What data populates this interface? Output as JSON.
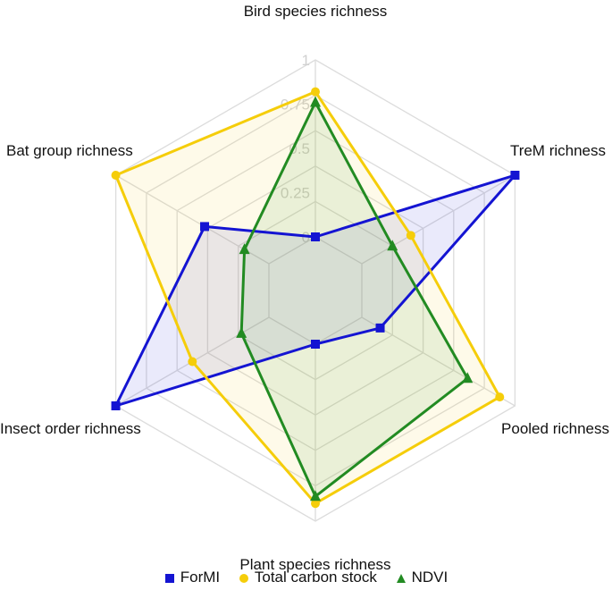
{
  "chart_data": {
    "type": "radar",
    "axes": [
      "Bird species richness",
      "TreM richness",
      "Pooled richness",
      "Plant species richness",
      "Insect order richness",
      "Bat group richness"
    ],
    "ticks": [
      "0",
      "0.25",
      "0.5",
      "0.75",
      "1"
    ],
    "range": [
      0,
      1
    ],
    "rings": 6,
    "legend_position": "bottom",
    "series": [
      {
        "name": "ForMI",
        "color": "#1414d2",
        "marker": "square",
        "values": [
          0.0,
          1.0,
          0.12,
          0.0,
          1.0,
          0.42
        ]
      },
      {
        "name": "Total carbon stock",
        "color": "#f5cd0a",
        "marker": "circle",
        "values": [
          0.82,
          0.32,
          0.9,
          0.9,
          0.5,
          1.0
        ]
      },
      {
        "name": "NDVI",
        "color": "#228b22",
        "marker": "triangle",
        "values": [
          0.76,
          0.2,
          0.69,
          0.86,
          0.18,
          0.16
        ]
      }
    ]
  }
}
